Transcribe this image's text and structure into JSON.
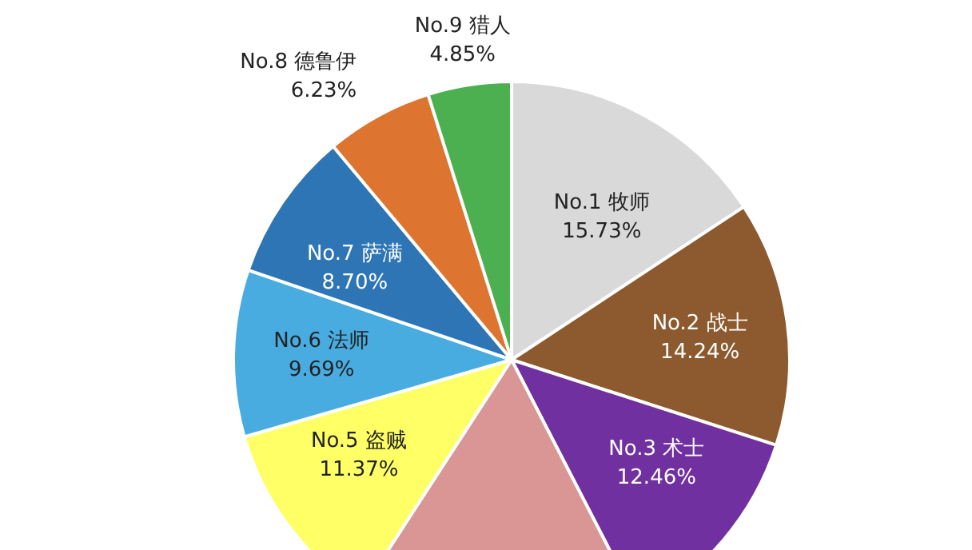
{
  "chart_data": {
    "type": "pie",
    "categories": [
      "No.1 牧师",
      "No.2 战士",
      "No.3 术士",
      null,
      "No.5 盗贼",
      "No.6 法师",
      "No.7 萨满",
      "No.8 德鲁伊",
      "No.9 猎人"
    ],
    "values": [
      15.73,
      14.24,
      12.46,
      16.73,
      11.37,
      9.69,
      8.7,
      6.23,
      4.85
    ],
    "value_labels": [
      "15.73%",
      "14.24%",
      "12.46%",
      null,
      "11.37%",
      "9.69%",
      "8.70%",
      "6.23%",
      "4.85%"
    ],
    "colors": [
      "#d9d9d9",
      "#8c5a2e",
      "#7030a0",
      "#d99694",
      "#ffff66",
      "#49ace0",
      "#2e75b6",
      "#dd7430",
      "#4caf50"
    ],
    "legend": false
  }
}
